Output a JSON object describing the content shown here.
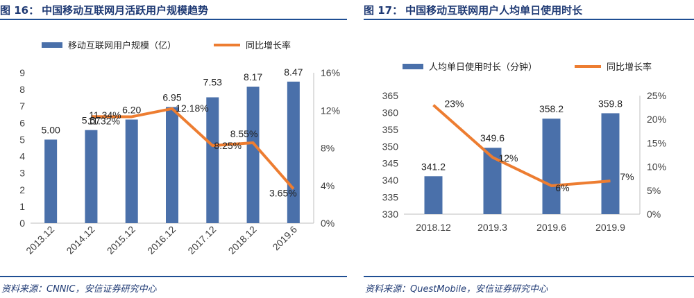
{
  "colors": {
    "bar": "#4a70aa",
    "line": "#ed7d31",
    "title": "#1f3a74",
    "rule": "#1f4e93",
    "axis_text": "#404040"
  },
  "left": {
    "fig_label": "图 16：",
    "title": "中国移动互联网月活跃用户规模趋势",
    "source": "资料来源：CNNIC，安信证券研究中心"
  },
  "right": {
    "fig_label": "图 17：",
    "title": "中国移动互联网用户人均单日使用时长",
    "source": "资料来源：QuestMobile，安信证券研究中心"
  },
  "chart_data": [
    {
      "type": "bar",
      "categories": [
        "2013.12",
        "2014.12",
        "2015.12",
        "2016.12",
        "2017.12",
        "2018.12",
        "2019.6"
      ],
      "series": [
        {
          "name": "移动互联网用户规模（亿）",
          "type": "bar",
          "axis": "left",
          "values": [
            5.0,
            5.57,
            6.2,
            6.95,
            7.53,
            8.17,
            8.47
          ],
          "labels": [
            "5.00",
            "5.57",
            "6.20",
            "6.95",
            "7.53",
            "8.17",
            "8.47"
          ]
        },
        {
          "name": "同比增长率",
          "type": "line",
          "axis": "right",
          "values": [
            null,
            11.34,
            11.32,
            12.18,
            8.25,
            8.55,
            3.65
          ],
          "labels": [
            "",
            "11.34%",
            "11.32%",
            "12.18%",
            "8.25%",
            "8.55%",
            "3.65%"
          ]
        }
      ],
      "ylim": [
        0,
        9
      ],
      "yticks": [
        "0",
        "1",
        "2",
        "3",
        "4",
        "5",
        "6",
        "7",
        "8",
        "9"
      ],
      "y2lim": [
        0,
        16
      ],
      "y2ticks": [
        "0%",
        "4%",
        "8%",
        "12%",
        "16%"
      ],
      "legend": "top",
      "grid": false
    },
    {
      "type": "bar",
      "categories": [
        "2018.12",
        "2019.3",
        "2019.6",
        "2019.9"
      ],
      "series": [
        {
          "name": "人均单日使用时长（分钟）",
          "type": "bar",
          "axis": "left",
          "values": [
            341.2,
            349.6,
            358.2,
            359.8
          ],
          "labels": [
            "341.2",
            "349.6",
            "358.2",
            "359.8"
          ]
        },
        {
          "name": "同比增长率",
          "type": "line",
          "axis": "right",
          "values": [
            23,
            12,
            6,
            7
          ],
          "labels": [
            "23%",
            "12%",
            "6%",
            "7%"
          ]
        }
      ],
      "ylim": [
        330,
        365
      ],
      "yticks": [
        "330",
        "335",
        "340",
        "345",
        "350",
        "355",
        "360",
        "365"
      ],
      "y2lim": [
        0,
        25
      ],
      "y2ticks": [
        "0%",
        "5%",
        "10%",
        "15%",
        "20%",
        "25%"
      ],
      "legend": "top",
      "grid": false
    }
  ]
}
